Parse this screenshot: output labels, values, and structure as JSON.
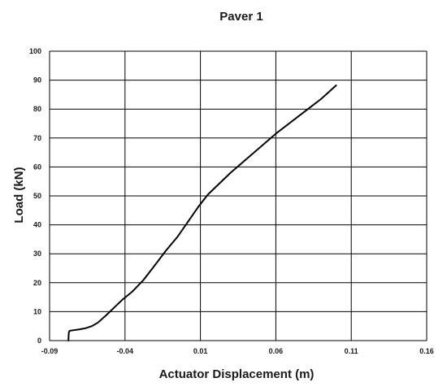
{
  "chart_data": {
    "type": "line",
    "title": "Paver 1",
    "xlabel": "Actuator Displacement (m)",
    "ylabel": "Load (kN)",
    "xlim": [
      -0.09,
      0.16
    ],
    "ylim": [
      0,
      100
    ],
    "x_ticks": [
      -0.09,
      -0.04,
      0.01,
      0.06,
      0.11,
      0.16
    ],
    "x_tick_labels": [
      "-0.09",
      "-0.04",
      "0.01",
      "0.06",
      "0.11",
      "0.16"
    ],
    "y_ticks": [
      0,
      10,
      20,
      30,
      40,
      50,
      60,
      70,
      80,
      90,
      100
    ],
    "y_tick_labels": [
      "0",
      "10",
      "20",
      "30",
      "40",
      "50",
      "60",
      "70",
      "80",
      "90",
      "100"
    ],
    "grid": true,
    "legend": "none",
    "series": [
      {
        "color": "#000000",
        "x": [
          -0.0775,
          -0.0773,
          -0.077,
          -0.0765,
          -0.074,
          -0.07,
          -0.066,
          -0.062,
          -0.058,
          -0.053,
          -0.048,
          -0.042,
          -0.035,
          -0.028,
          -0.021,
          -0.013,
          -0.005,
          0.003,
          0.009,
          0.015,
          0.022,
          0.03,
          0.04,
          0.05,
          0.06,
          0.07,
          0.08,
          0.09,
          0.1
        ],
        "y": [
          0.0,
          2.5,
          3.2,
          3.4,
          3.6,
          3.9,
          4.3,
          5.0,
          6.2,
          8.5,
          11.0,
          14.0,
          17.0,
          20.8,
          25.5,
          31.0,
          36.0,
          42.0,
          46.5,
          50.5,
          54.0,
          58.0,
          62.5,
          67.0,
          71.5,
          75.5,
          79.5,
          83.5,
          88.2
        ]
      }
    ]
  }
}
